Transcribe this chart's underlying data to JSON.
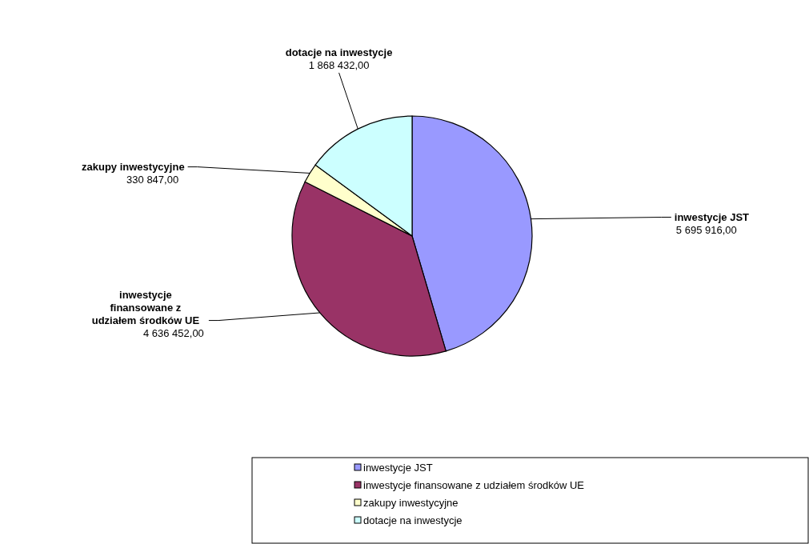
{
  "chart_data": {
    "type": "pie",
    "categories": [
      "inwestycje JST",
      "inwestycje finansowane z udziałem środków UE",
      "zakupy inwestycyjne",
      "dotacje na inwestycje"
    ],
    "values": [
      5695916,
      4636452,
      330847,
      1868432
    ],
    "value_labels": [
      "5 695 916,00",
      "4 636 452,00",
      "330 847,00",
      "1 868 432,00"
    ],
    "colors": [
      "#9999ff",
      "#993366",
      "#ffffcc",
      "#ccffff"
    ],
    "legend": "bottom"
  }
}
